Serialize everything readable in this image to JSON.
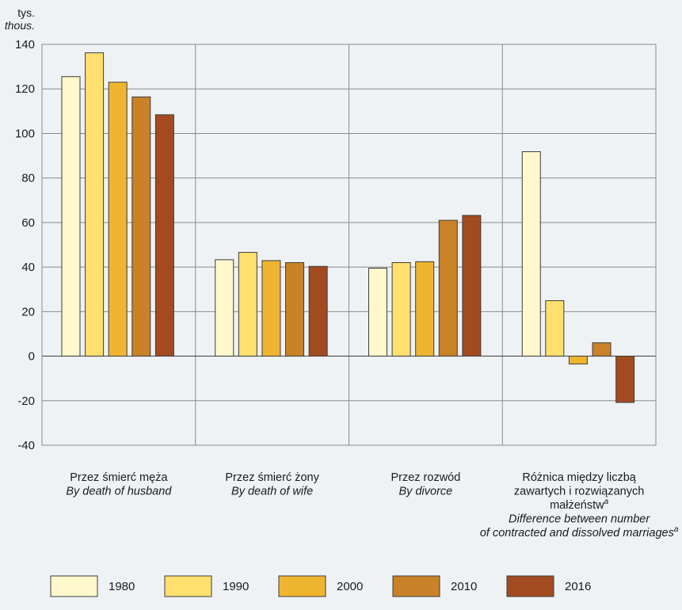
{
  "chart_data": {
    "type": "bar",
    "unit_label": "tys.",
    "unit_label_en": "thous.",
    "ylim": [
      -40,
      140
    ],
    "yticks": [
      -40,
      -20,
      0,
      20,
      40,
      60,
      80,
      100,
      120,
      140
    ],
    "grid": true,
    "legend_position": "bottom",
    "categories": [
      {
        "pl": [
          "Przez śmierć męża"
        ],
        "en": [
          "By death of husband"
        ]
      },
      {
        "pl": [
          "Przez śmierć żony"
        ],
        "en": [
          "By death of wife"
        ]
      },
      {
        "pl": [
          "Przez rozwód"
        ],
        "en": [
          "By divorce"
        ]
      },
      {
        "pl": [
          "Różnica między liczbą",
          "zawartych i rozwiązanych",
          "małżeństw"
        ],
        "en": [
          "Difference between number",
          "of contracted and dissolved marriages"
        ],
        "footnote": "a"
      }
    ],
    "series": [
      {
        "name": "1980",
        "color": "#fff8cc",
        "values": [
          125.5,
          43.3,
          39.5,
          91.8
        ]
      },
      {
        "name": "1990",
        "color": "#ffe06e",
        "values": [
          136.2,
          46.6,
          42.0,
          24.9
        ]
      },
      {
        "name": "2000",
        "color": "#f0b530",
        "values": [
          123.0,
          42.9,
          42.4,
          -3.5
        ]
      },
      {
        "name": "2010",
        "color": "#c98228",
        "values": [
          116.4,
          42.0,
          61.0,
          6.0
        ]
      },
      {
        "name": "2016",
        "color": "#a24b20",
        "values": [
          108.4,
          40.3,
          63.2,
          -20.8
        ]
      }
    ]
  }
}
